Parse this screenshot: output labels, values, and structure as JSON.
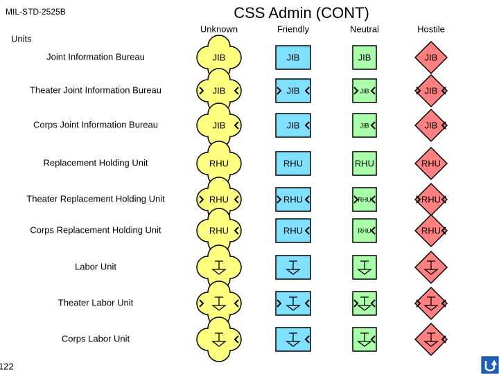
{
  "header": {
    "doc_id": "MIL-STD-2525B",
    "title": "CSS Admin (CONT)",
    "page_number": "122"
  },
  "table": {
    "row_header": "Units",
    "columns": [
      "Unknown",
      "Friendly",
      "Neutral",
      "Hostile"
    ],
    "rows": [
      {
        "label": "Joint Information Bureau",
        "cells": [
          "JIB",
          "JIB",
          "JIB",
          "JIB"
        ]
      },
      {
        "label": "Theater Joint Information Bureau",
        "cells": [
          "JIB",
          "JIB",
          "JIB",
          "JIB"
        ]
      },
      {
        "label": "Corps Joint Information Bureau",
        "cells": [
          "JIB",
          "JIB",
          "JIB",
          "JIB"
        ]
      },
      {
        "label": "Replacement Holding Unit",
        "cells": [
          "RHU",
          "RHU",
          "RHU",
          "RHU"
        ]
      },
      {
        "label": "Theater Replacement Holding Unit",
        "cells": [
          "RHU",
          "RHU",
          "RHU",
          "RHU"
        ]
      },
      {
        "label": "Corps Replacement Holding Unit",
        "cells": [
          "RHU",
          "RHU",
          "RHU",
          "RHU"
        ]
      },
      {
        "label": "Labor Unit"
      },
      {
        "label": "Theater Labor Unit"
      },
      {
        "label": "Corps Labor Unit"
      }
    ]
  }
}
